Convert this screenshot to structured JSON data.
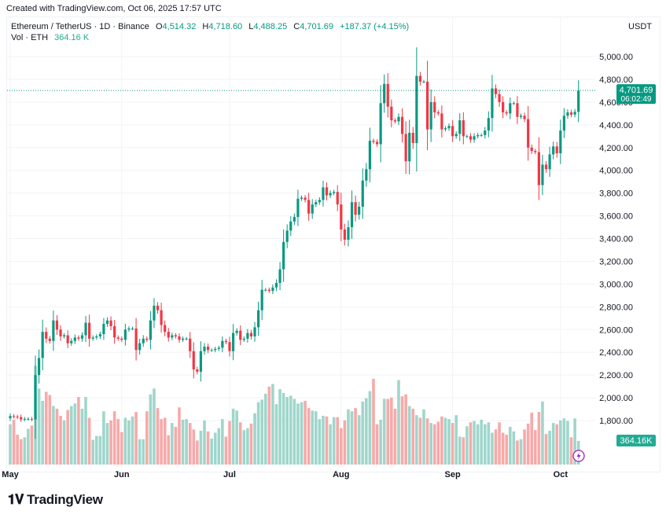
{
  "credit": "Created with TradingView.com, Oct 06, 2025 17:57 UTC",
  "header": {
    "symbol": "Ethereum / TetherUS · 1D · Binance",
    "open_label": "O",
    "open": "4,514.32",
    "high_label": "H",
    "high": "4,718.60",
    "low_label": "L",
    "low": "4,488.25",
    "close_label": "C",
    "close": "4,701.69",
    "change": "+187.37 (+4.15%)",
    "volume_label": "Vol · ETH",
    "volume": "364.16 K",
    "quote_currency": "USDT"
  },
  "logo": {
    "mark": "TV",
    "text": "TradingView"
  },
  "chart_data": {
    "type": "candlestick",
    "title": "Ethereum / TetherUS · 1D · Binance",
    "ylim": [
      1700,
      5100
    ],
    "y_ticks": [
      "5,000.00",
      "4,800.00",
      "4,600.00",
      "4,400.00",
      "4,200.00",
      "4,000.00",
      "3,800.00",
      "3,600.00",
      "3,400.00",
      "3,200.00",
      "3,000.00",
      "2,800.00",
      "2,600.00",
      "2,400.00",
      "2,200.00",
      "2,000.00",
      "1,800.00"
    ],
    "x_ticks": [
      "May",
      "Jun",
      "Jul",
      "Aug",
      "Sep",
      "Oct"
    ],
    "grid": true,
    "colors": {
      "up": "#089981",
      "down": "#f23645",
      "up_volume": "#9fd6cb",
      "down_volume": "#f7a9a9",
      "last_price": "#089981",
      "volume_marker": "#9c27b0"
    },
    "last_price": {
      "value": "4,701.69",
      "countdown": "06:02:49",
      "price": 4701.69
    },
    "last_volume": {
      "value": "364.16K"
    },
    "closes": {
      "May": [
        1840,
        1835,
        1830,
        1810,
        1815,
        1815,
        1810,
        2200,
        2350,
        2580,
        2520,
        2500,
        2680,
        2600,
        2540,
        2550,
        2480,
        2500,
        2530,
        2520,
        2550,
        2660,
        2520,
        2530,
        2540,
        2560,
        2650,
        2680,
        2630,
        2530,
        2520
      ],
      "Jun": [
        2510,
        2600,
        2610,
        2610,
        2420,
        2480,
        2520,
        2510,
        2680,
        2810,
        2770,
        2640,
        2580,
        2530,
        2550,
        2540,
        2510,
        2520,
        2520,
        2410,
        2250,
        2230,
        2410,
        2450,
        2420,
        2420,
        2430,
        2440,
        2500,
        2490
      ],
      "Jul": [
        2410,
        2570,
        2590,
        2510,
        2520,
        2570,
        2540,
        2620,
        2770,
        2950,
        2950,
        2940,
        2970,
        3010,
        3130,
        3370,
        3470,
        3550,
        3590,
        3750,
        3760,
        3740,
        3620,
        3700,
        3720,
        3740,
        3850,
        3780,
        3800,
        3810,
        3700
      ],
      "Aug": [
        3480,
        3390,
        3500,
        3720,
        3610,
        3680,
        3910,
        4010,
        4260,
        4250,
        4230,
        4590,
        4760,
        4560,
        4440,
        4430,
        4470,
        4320,
        4080,
        4330,
        4240,
        4830,
        4780,
        4780,
        4360,
        4600,
        4510,
        4500,
        4360,
        4370,
        4390
      ],
      "Sep": [
        4300,
        4320,
        4440,
        4300,
        4300,
        4270,
        4300,
        4310,
        4310,
        4350,
        4460,
        4720,
        4670,
        4600,
        4510,
        4500,
        4590,
        4590,
        4470,
        4480,
        4450,
        4200,
        4170,
        4160,
        3870,
        4050,
        4010,
        4140,
        4210,
        4150
      ],
      "Oct": [
        4350,
        4480,
        4510,
        4490,
        4514.32,
        4701.69
      ]
    },
    "first_open": 1820,
    "volumes_k": {
      "May": [
        620,
        690,
        460,
        390,
        420,
        550,
        600,
        1520,
        1170,
        980,
        1120,
        1070,
        900,
        860,
        750,
        680,
        840,
        900,
        940,
        1040,
        860,
        1040,
        720,
        380,
        440,
        440,
        820,
        640,
        680,
        820,
        700
      ],
      "Jun": [
        500,
        720,
        680,
        740,
        810,
        390,
        390,
        820,
        1080,
        1170,
        870,
        700,
        720,
        450,
        640,
        580,
        880,
        690,
        700,
        640,
        540,
        370,
        520,
        680,
        510,
        400,
        490,
        560,
        700,
        430
      ],
      "Jul": [
        670,
        860,
        830,
        650,
        530,
        560,
        630,
        790,
        960,
        1000,
        1090,
        1200,
        1240,
        930,
        1160,
        1100,
        1040,
        1060,
        1010,
        940,
        960,
        980,
        870,
        830,
        820,
        700,
        750,
        740,
        620,
        730,
        730
      ],
      "Aug": [
        560,
        680,
        850,
        820,
        870,
        760,
        970,
        1020,
        1130,
        1320,
        620,
        690,
        1010,
        1010,
        1030,
        860,
        1300,
        1050,
        1080,
        900,
        860,
        760,
        720,
        850,
        710,
        640,
        620,
        660,
        740,
        720,
        700
      ],
      "Sep": [
        640,
        760,
        430,
        420,
        590,
        650,
        670,
        620,
        690,
        620,
        650,
        490,
        540,
        650,
        490,
        460,
        580,
        510,
        370,
        390,
        540,
        630,
        800,
        530,
        810,
        970,
        470,
        520,
        640,
        620
      ],
      "Oct": [
        680,
        710,
        670,
        420,
        710,
        364.16
      ]
    }
  }
}
